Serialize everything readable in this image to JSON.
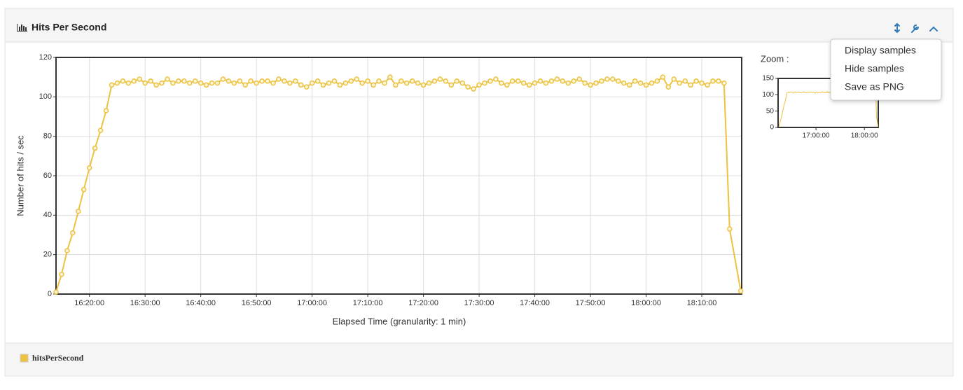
{
  "panel": {
    "title": "Hits Per Second",
    "zoom_label": "Zoom :",
    "menu": [
      "Display samples",
      "Hide samples",
      "Save as PNG"
    ]
  },
  "chart_data": {
    "type": "line",
    "x_label": "Elapsed Time (granularity: 1 min)",
    "y_label": "Number of hits / sec",
    "x": [
      "16:14:00",
      "16:15:00",
      "16:16:00",
      "16:17:00",
      "16:18:00",
      "16:19:00",
      "16:20:00",
      "16:21:00",
      "16:22:00",
      "16:23:00",
      "16:24:00",
      "16:25:00",
      "16:26:00",
      "16:27:00",
      "16:28:00",
      "16:29:00",
      "16:30:00",
      "16:31:00",
      "16:32:00",
      "16:33:00",
      "16:34:00",
      "16:35:00",
      "16:36:00",
      "16:37:00",
      "16:38:00",
      "16:39:00",
      "16:40:00",
      "16:41:00",
      "16:42:00",
      "16:43:00",
      "16:44:00",
      "16:45:00",
      "16:46:00",
      "16:47:00",
      "16:48:00",
      "16:49:00",
      "16:50:00",
      "16:51:00",
      "16:52:00",
      "16:53:00",
      "16:54:00",
      "16:55:00",
      "16:56:00",
      "16:57:00",
      "16:58:00",
      "16:59:00",
      "17:00:00",
      "17:01:00",
      "17:02:00",
      "17:03:00",
      "17:04:00",
      "17:05:00",
      "17:06:00",
      "17:07:00",
      "17:08:00",
      "17:09:00",
      "17:10:00",
      "17:11:00",
      "17:12:00",
      "17:13:00",
      "17:14:00",
      "17:15:00",
      "17:16:00",
      "17:17:00",
      "17:18:00",
      "17:19:00",
      "17:20:00",
      "17:21:00",
      "17:22:00",
      "17:23:00",
      "17:24:00",
      "17:25:00",
      "17:26:00",
      "17:27:00",
      "17:28:00",
      "17:29:00",
      "17:30:00",
      "17:31:00",
      "17:32:00",
      "17:33:00",
      "17:34:00",
      "17:35:00",
      "17:36:00",
      "17:37:00",
      "17:38:00",
      "17:39:00",
      "17:40:00",
      "17:41:00",
      "17:42:00",
      "17:43:00",
      "17:44:00",
      "17:45:00",
      "17:46:00",
      "17:47:00",
      "17:48:00",
      "17:49:00",
      "17:50:00",
      "17:51:00",
      "17:52:00",
      "17:53:00",
      "17:54:00",
      "17:55:00",
      "17:56:00",
      "17:57:00",
      "17:58:00",
      "17:59:00",
      "18:00:00",
      "18:01:00",
      "18:02:00",
      "18:03:00",
      "18:04:00",
      "18:05:00",
      "18:06:00",
      "18:07:00",
      "18:08:00",
      "18:09:00",
      "18:10:00",
      "18:11:00",
      "18:12:00",
      "18:13:00",
      "18:14:00",
      "18:15:00",
      "18:17:00"
    ],
    "series": [
      {
        "name": "hitsPerSecond",
        "color": "#edc240",
        "values": [
          1,
          10,
          22,
          31,
          42,
          53,
          64,
          74,
          83,
          93,
          106,
          107,
          108,
          107,
          108,
          109,
          107,
          108,
          106,
          107,
          109,
          107,
          108,
          108,
          107,
          108,
          107,
          106,
          107,
          107,
          109,
          108,
          107,
          108,
          106,
          108,
          107,
          108,
          108,
          107,
          109,
          108,
          107,
          108,
          106,
          105,
          107,
          108,
          106,
          107,
          108,
          106,
          107,
          108,
          109,
          107,
          108,
          106,
          108,
          107,
          110,
          106,
          108,
          107,
          108,
          107,
          106,
          107,
          108,
          109,
          108,
          106,
          108,
          107,
          105,
          104,
          106,
          107,
          108,
          109,
          107,
          106,
          108,
          108,
          107,
          106,
          107,
          108,
          107,
          108,
          109,
          108,
          107,
          108,
          109,
          107,
          106,
          107,
          108,
          109,
          109,
          108,
          107,
          106,
          108,
          107,
          106,
          107,
          108,
          110,
          105,
          109,
          107,
          108,
          106,
          108,
          107,
          106,
          108,
          108,
          107,
          33,
          1.5
        ]
      }
    ],
    "xlim": [
      "16:14:00",
      "18:17:10"
    ],
    "xticks": [
      "16:20:00",
      "16:30:00",
      "16:40:00",
      "16:50:00",
      "17:00:00",
      "17:10:00",
      "17:20:00",
      "17:30:00",
      "17:40:00",
      "17:50:00",
      "18:00:00",
      "18:10:00"
    ],
    "ylim": [
      0,
      120
    ],
    "yticks": [
      0,
      20,
      40,
      60,
      80,
      100,
      120
    ],
    "grid": true,
    "legend": "bottom-left"
  },
  "zoom_chart": {
    "xlim": [
      "16:13:00",
      "18:17:10"
    ],
    "xticks": [
      "17:00:00",
      "18:00:00"
    ],
    "ylim": [
      0,
      150
    ],
    "yticks": [
      0,
      50,
      100,
      150
    ]
  }
}
